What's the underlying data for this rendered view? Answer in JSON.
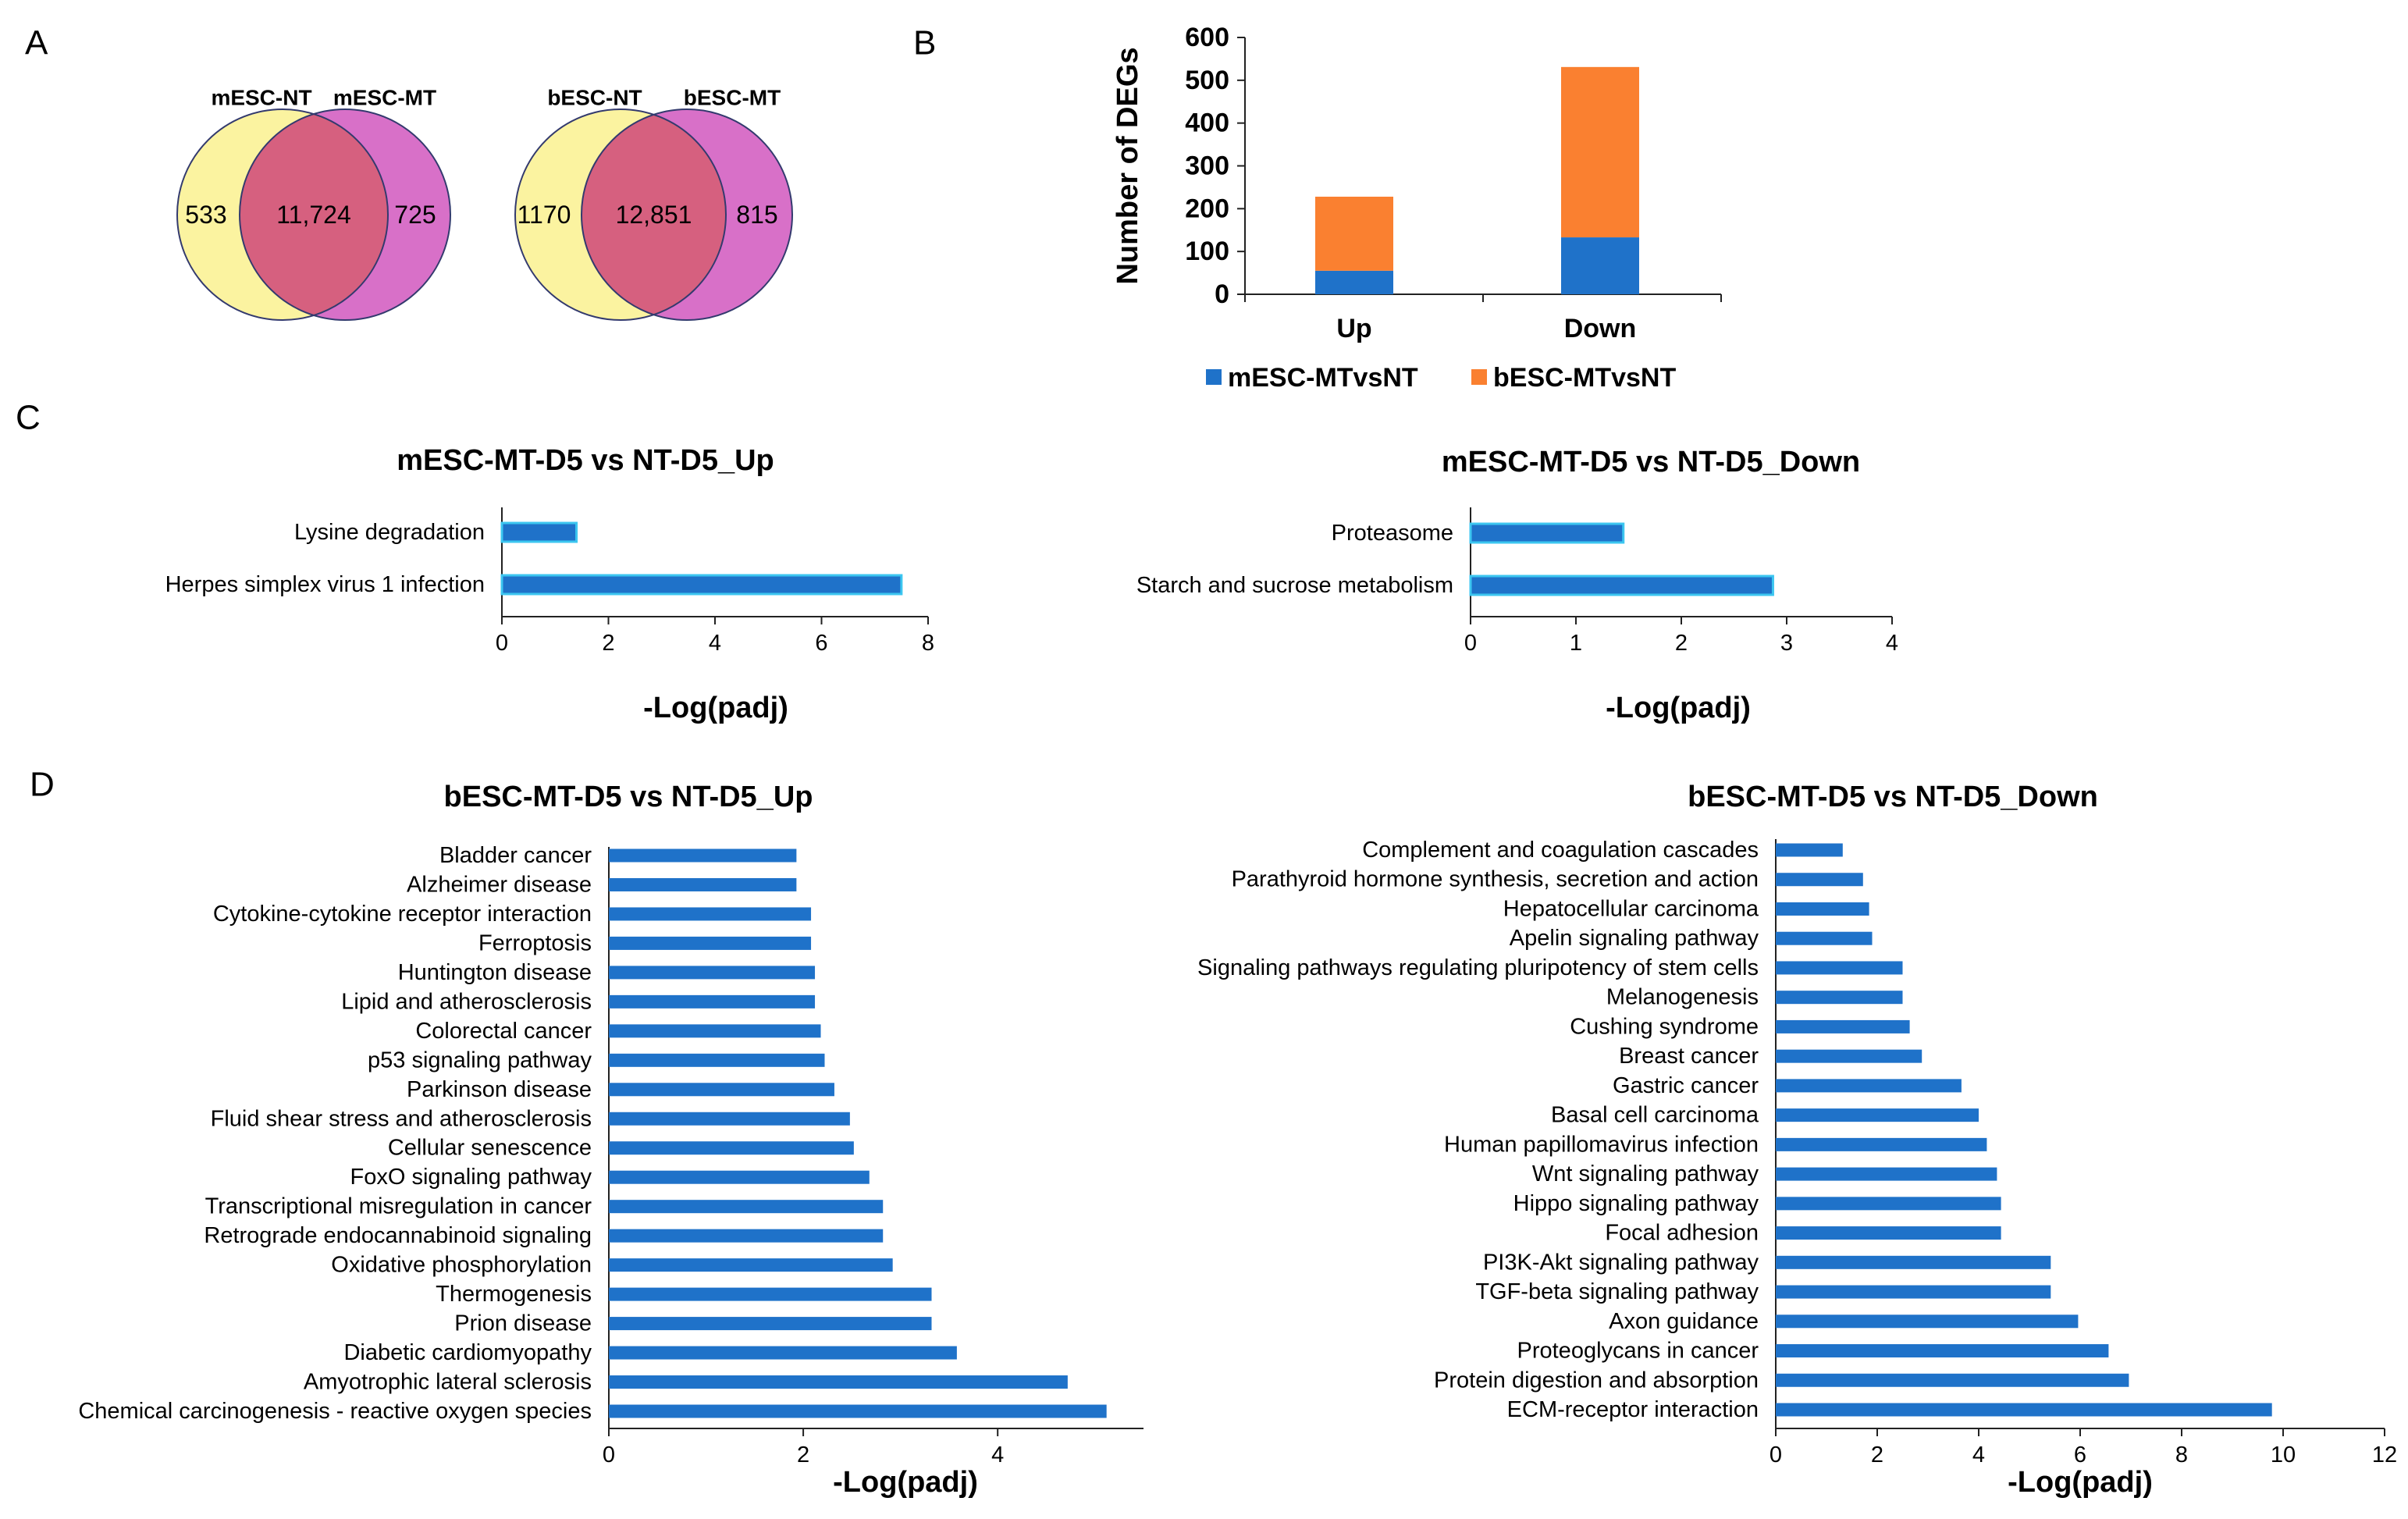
{
  "colors": {
    "yellow": "#fbf3a0",
    "magenta": "#d870c8",
    "overlap": "#d6607f",
    "blue": "#1f72c9",
    "orange": "#fa8030",
    "bar_edge": "#3cc6f0"
  },
  "panel_labels": [
    "A",
    "B",
    "C",
    "D"
  ],
  "panel_a": {
    "venns": [
      {
        "left_label": "mESC-NT",
        "right_label": "mESC-MT",
        "left_only": "533",
        "overlap": "11,724",
        "right_only": "725"
      },
      {
        "left_label": "bESC-NT",
        "right_label": "bESC-MT",
        "left_only": "1170",
        "overlap": "12,851",
        "right_only": "815"
      }
    ]
  },
  "chart_data": [
    {
      "id": "B",
      "type": "bar",
      "stacked": true,
      "categories": [
        "Up",
        "Down"
      ],
      "series": [
        {
          "name": "mESC-MTvsNT",
          "values": [
            55,
            133
          ]
        },
        {
          "name": "bESC-MTvsNT",
          "values": [
            173,
            398
          ]
        }
      ],
      "ylabel": "Number of DEGs",
      "ylim": [
        0,
        600
      ],
      "yticks": [
        "0",
        "100",
        "200",
        "300",
        "400",
        "500",
        "600"
      ],
      "legend": "bottom"
    },
    {
      "id": "C-up",
      "type": "bar",
      "orientation": "horizontal",
      "title": "mESC-MT-D5 vs NT-D5_Up",
      "categories": [
        "Lysine degradation",
        "Herpes simplex virus 1 infection"
      ],
      "values": [
        1.4,
        7.5
      ],
      "xlabel": "-Log(padj)",
      "xlim": [
        0,
        8
      ],
      "xticks": [
        "0",
        "2",
        "4",
        "6",
        "8"
      ]
    },
    {
      "id": "C-down",
      "type": "bar",
      "orientation": "horizontal",
      "title": "mESC-MT-D5 vs NT-D5_Down",
      "categories": [
        "Proteasome",
        "Starch and sucrose metabolism"
      ],
      "values": [
        1.45,
        2.87
      ],
      "xlabel": "-Log(padj)",
      "xlim": [
        0,
        4
      ],
      "xticks": [
        "0",
        "1",
        "2",
        "3",
        "4"
      ]
    },
    {
      "id": "D-up",
      "type": "bar",
      "orientation": "horizontal",
      "title": "bESC-MT-D5 vs NT-D5_Up",
      "categories": [
        "Bladder cancer",
        "Alzheimer disease",
        "Cytokine-cytokine receptor interaction",
        "Ferroptosis",
        "Huntington disease",
        "Lipid and atherosclerosis",
        "Colorectal cancer",
        "p53 signaling pathway",
        "Parkinson disease",
        "Fluid shear stress and atherosclerosis",
        "Cellular senescence",
        "FoxO signaling pathway",
        "Transcriptional misregulation in cancer",
        "Retrograde endocannabinoid signaling",
        "Oxidative phosphorylation",
        "Thermogenesis",
        "Prion disease",
        "Diabetic cardiomyopathy",
        "Amyotrophic lateral sclerosis",
        "Chemical carcinogenesis - reactive oxygen species"
      ],
      "values": [
        1.93,
        1.93,
        2.08,
        2.08,
        2.12,
        2.12,
        2.18,
        2.22,
        2.32,
        2.48,
        2.52,
        2.68,
        2.82,
        2.82,
        2.92,
        3.32,
        3.32,
        3.58,
        4.72,
        5.12
      ],
      "xlabel": "-Log(padj)",
      "xlim": [
        0,
        5.5
      ],
      "xticks": [
        "0",
        "2",
        "4"
      ]
    },
    {
      "id": "D-down",
      "type": "bar",
      "orientation": "horizontal",
      "title": "bESC-MT-D5 vs NT-D5_Down",
      "categories": [
        "Complement and coagulation cascades",
        "Parathyroid hormone synthesis, secretion and action",
        "Hepatocellular carcinoma",
        "Apelin signaling pathway",
        "Signaling pathways regulating pluripotency of stem cells",
        "Melanogenesis",
        "Cushing syndrome",
        "Breast cancer",
        "Gastric cancer",
        "Basal cell carcinoma",
        "Human papillomavirus infection",
        "Wnt signaling pathway",
        "Hippo signaling pathway",
        "Focal adhesion",
        "PI3K-Akt signaling pathway",
        "TGF-beta signaling pathway",
        "Axon guidance",
        "Proteoglycans in cancer",
        "Protein digestion and absorption",
        "ECM-receptor interaction"
      ],
      "values": [
        1.32,
        1.72,
        1.84,
        1.9,
        2.5,
        2.5,
        2.64,
        2.88,
        3.66,
        4.0,
        4.16,
        4.36,
        4.44,
        4.44,
        5.42,
        5.42,
        5.96,
        6.56,
        6.96,
        9.78
      ],
      "xlabel": "-Log(padj)",
      "xlim": [
        0,
        12
      ],
      "xticks": [
        "0",
        "2",
        "4",
        "6",
        "8",
        "10",
        "12"
      ]
    }
  ]
}
